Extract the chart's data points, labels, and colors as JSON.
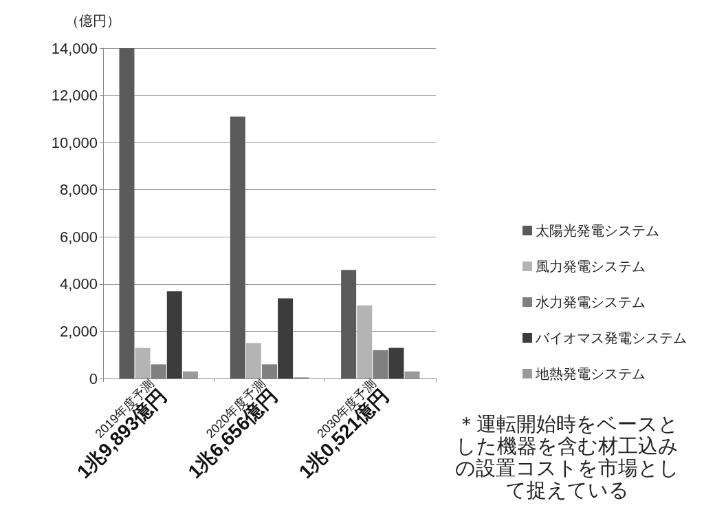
{
  "chart_data": {
    "type": "bar",
    "ylabel": "（億円）",
    "categories": [
      "2019年度予測\n1兆9,893億円",
      "2020年度予測\n1兆6,656億円",
      "2030年度予測\n1兆0,521億円"
    ],
    "series": [
      {
        "name": "太陽光発電システム",
        "color": "#5a5a5a",
        "values": [
          14000,
          11100,
          4600
        ]
      },
      {
        "name": "風力発電システム",
        "color": "#b4b4b4",
        "values": [
          1300,
          1500,
          3100
        ]
      },
      {
        "name": "水力発電システム",
        "color": "#808080",
        "values": [
          600,
          600,
          1200
        ]
      },
      {
        "name": "バイオマス発電システム",
        "color": "#3c3c3c",
        "values": [
          3700,
          3400,
          1300
        ]
      },
      {
        "name": "地熱発電システム",
        "color": "#9a9a9a",
        "values": [
          300,
          50,
          300
        ]
      }
    ],
    "ylim": [
      0,
      14000
    ],
    "yticks": [
      {
        "value": 0,
        "label": "0"
      },
      {
        "value": 2000,
        "label": "2,000"
      },
      {
        "value": 4000,
        "label": "4,000"
      },
      {
        "value": 6000,
        "label": "6,000"
      },
      {
        "value": 8000,
        "label": "8,000"
      },
      {
        "value": 10000,
        "label": "10,000"
      },
      {
        "value": 12000,
        "label": "12,000"
      },
      {
        "value": 14000,
        "label": "14,000"
      }
    ],
    "grid": true,
    "legend": "right",
    "annotations": [
      "＊運転開始時をベースとした機器を含む材工込みの設置コストを市場として捉えている"
    ]
  }
}
